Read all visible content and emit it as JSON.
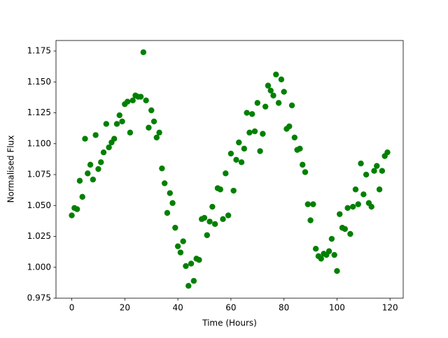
{
  "chart_data": {
    "type": "scatter",
    "xlabel": "Time (Hours)",
    "ylabel": "Normalised Flux",
    "color": "#008000",
    "x": [
      0,
      1,
      2,
      3,
      4,
      5,
      6,
      7,
      8,
      9,
      10,
      11,
      12,
      13,
      14,
      15,
      16,
      17,
      18,
      19,
      20,
      21,
      22,
      23,
      24,
      25,
      26,
      27,
      28,
      29,
      30,
      31,
      32,
      33,
      34,
      35,
      36,
      37,
      38,
      39,
      40,
      41,
      42,
      43,
      44,
      45,
      46,
      47,
      48,
      49,
      50,
      51,
      52,
      53,
      54,
      55,
      56,
      57,
      58,
      59,
      60,
      61,
      62,
      63,
      64,
      65,
      66,
      67,
      68,
      69,
      70,
      71,
      72,
      73,
      74,
      75,
      76,
      77,
      78,
      79,
      80,
      81,
      82,
      83,
      84,
      85,
      86,
      87,
      88,
      89,
      90,
      91,
      92,
      93,
      94,
      95,
      96,
      97,
      98,
      99,
      100,
      101,
      102,
      103,
      104,
      105,
      106,
      107,
      108,
      109,
      110,
      111,
      112,
      113,
      114,
      115,
      116,
      117,
      118,
      119
    ],
    "values": [
      1.042,
      1.048,
      1.047,
      1.07,
      1.057,
      1.104,
      1.076,
      1.083,
      1.071,
      1.107,
      1.0795,
      1.085,
      1.093,
      1.116,
      1.097,
      1.101,
      1.104,
      1.116,
      1.123,
      1.118,
      1.132,
      1.134,
      1.109,
      1.135,
      1.139,
      1.138,
      1.138,
      1.174,
      1.135,
      1.113,
      1.127,
      1.118,
      1.105,
      1.109,
      1.08,
      1.068,
      1.044,
      1.06,
      1.052,
      1.032,
      1.017,
      1.012,
      1.021,
      1.001,
      0.985,
      1.003,
      0.989,
      1.007,
      1.006,
      1.039,
      1.04,
      1.026,
      1.037,
      1.049,
      1.035,
      1.064,
      1.063,
      1.039,
      1.076,
      1.042,
      1.092,
      1.062,
      1.087,
      1.101,
      1.085,
      1.096,
      1.125,
      1.109,
      1.124,
      1.11,
      1.133,
      1.094,
      1.108,
      1.13,
      1.147,
      1.143,
      1.139,
      1.156,
      1.133,
      1.152,
      1.142,
      1.112,
      1.114,
      1.131,
      1.105,
      1.095,
      1.096,
      1.083,
      1.077,
      1.051,
      1.038,
      1.051,
      1.015,
      1.009,
      1.007,
      1.011,
      1.01,
      1.013,
      1.023,
      1.01,
      0.997,
      1.043,
      1.032,
      1.031,
      1.048,
      1.027,
      1.049,
      1.063,
      1.051,
      1.084,
      1.059,
      1.075,
      1.052,
      1.049,
      1.078,
      1.082,
      1.063,
      1.078,
      1.09,
      1.093
    ],
    "xlim": [
      -5.95,
      124.95
    ],
    "xticks": [
      0,
      20,
      40,
      60,
      80,
      100,
      120
    ],
    "ylim": [
      0.975,
      1.1835
    ],
    "yticks": [
      0.975,
      {
        "value": 1.0,
        "label": "1.000"
      },
      1.025,
      {
        "value": 1.05,
        "label": "1.050"
      },
      1.075,
      {
        "value": 1.1,
        "label": "1.100"
      },
      1.125,
      {
        "value": 1.15,
        "label": "1.150"
      },
      1.175
    ]
  }
}
